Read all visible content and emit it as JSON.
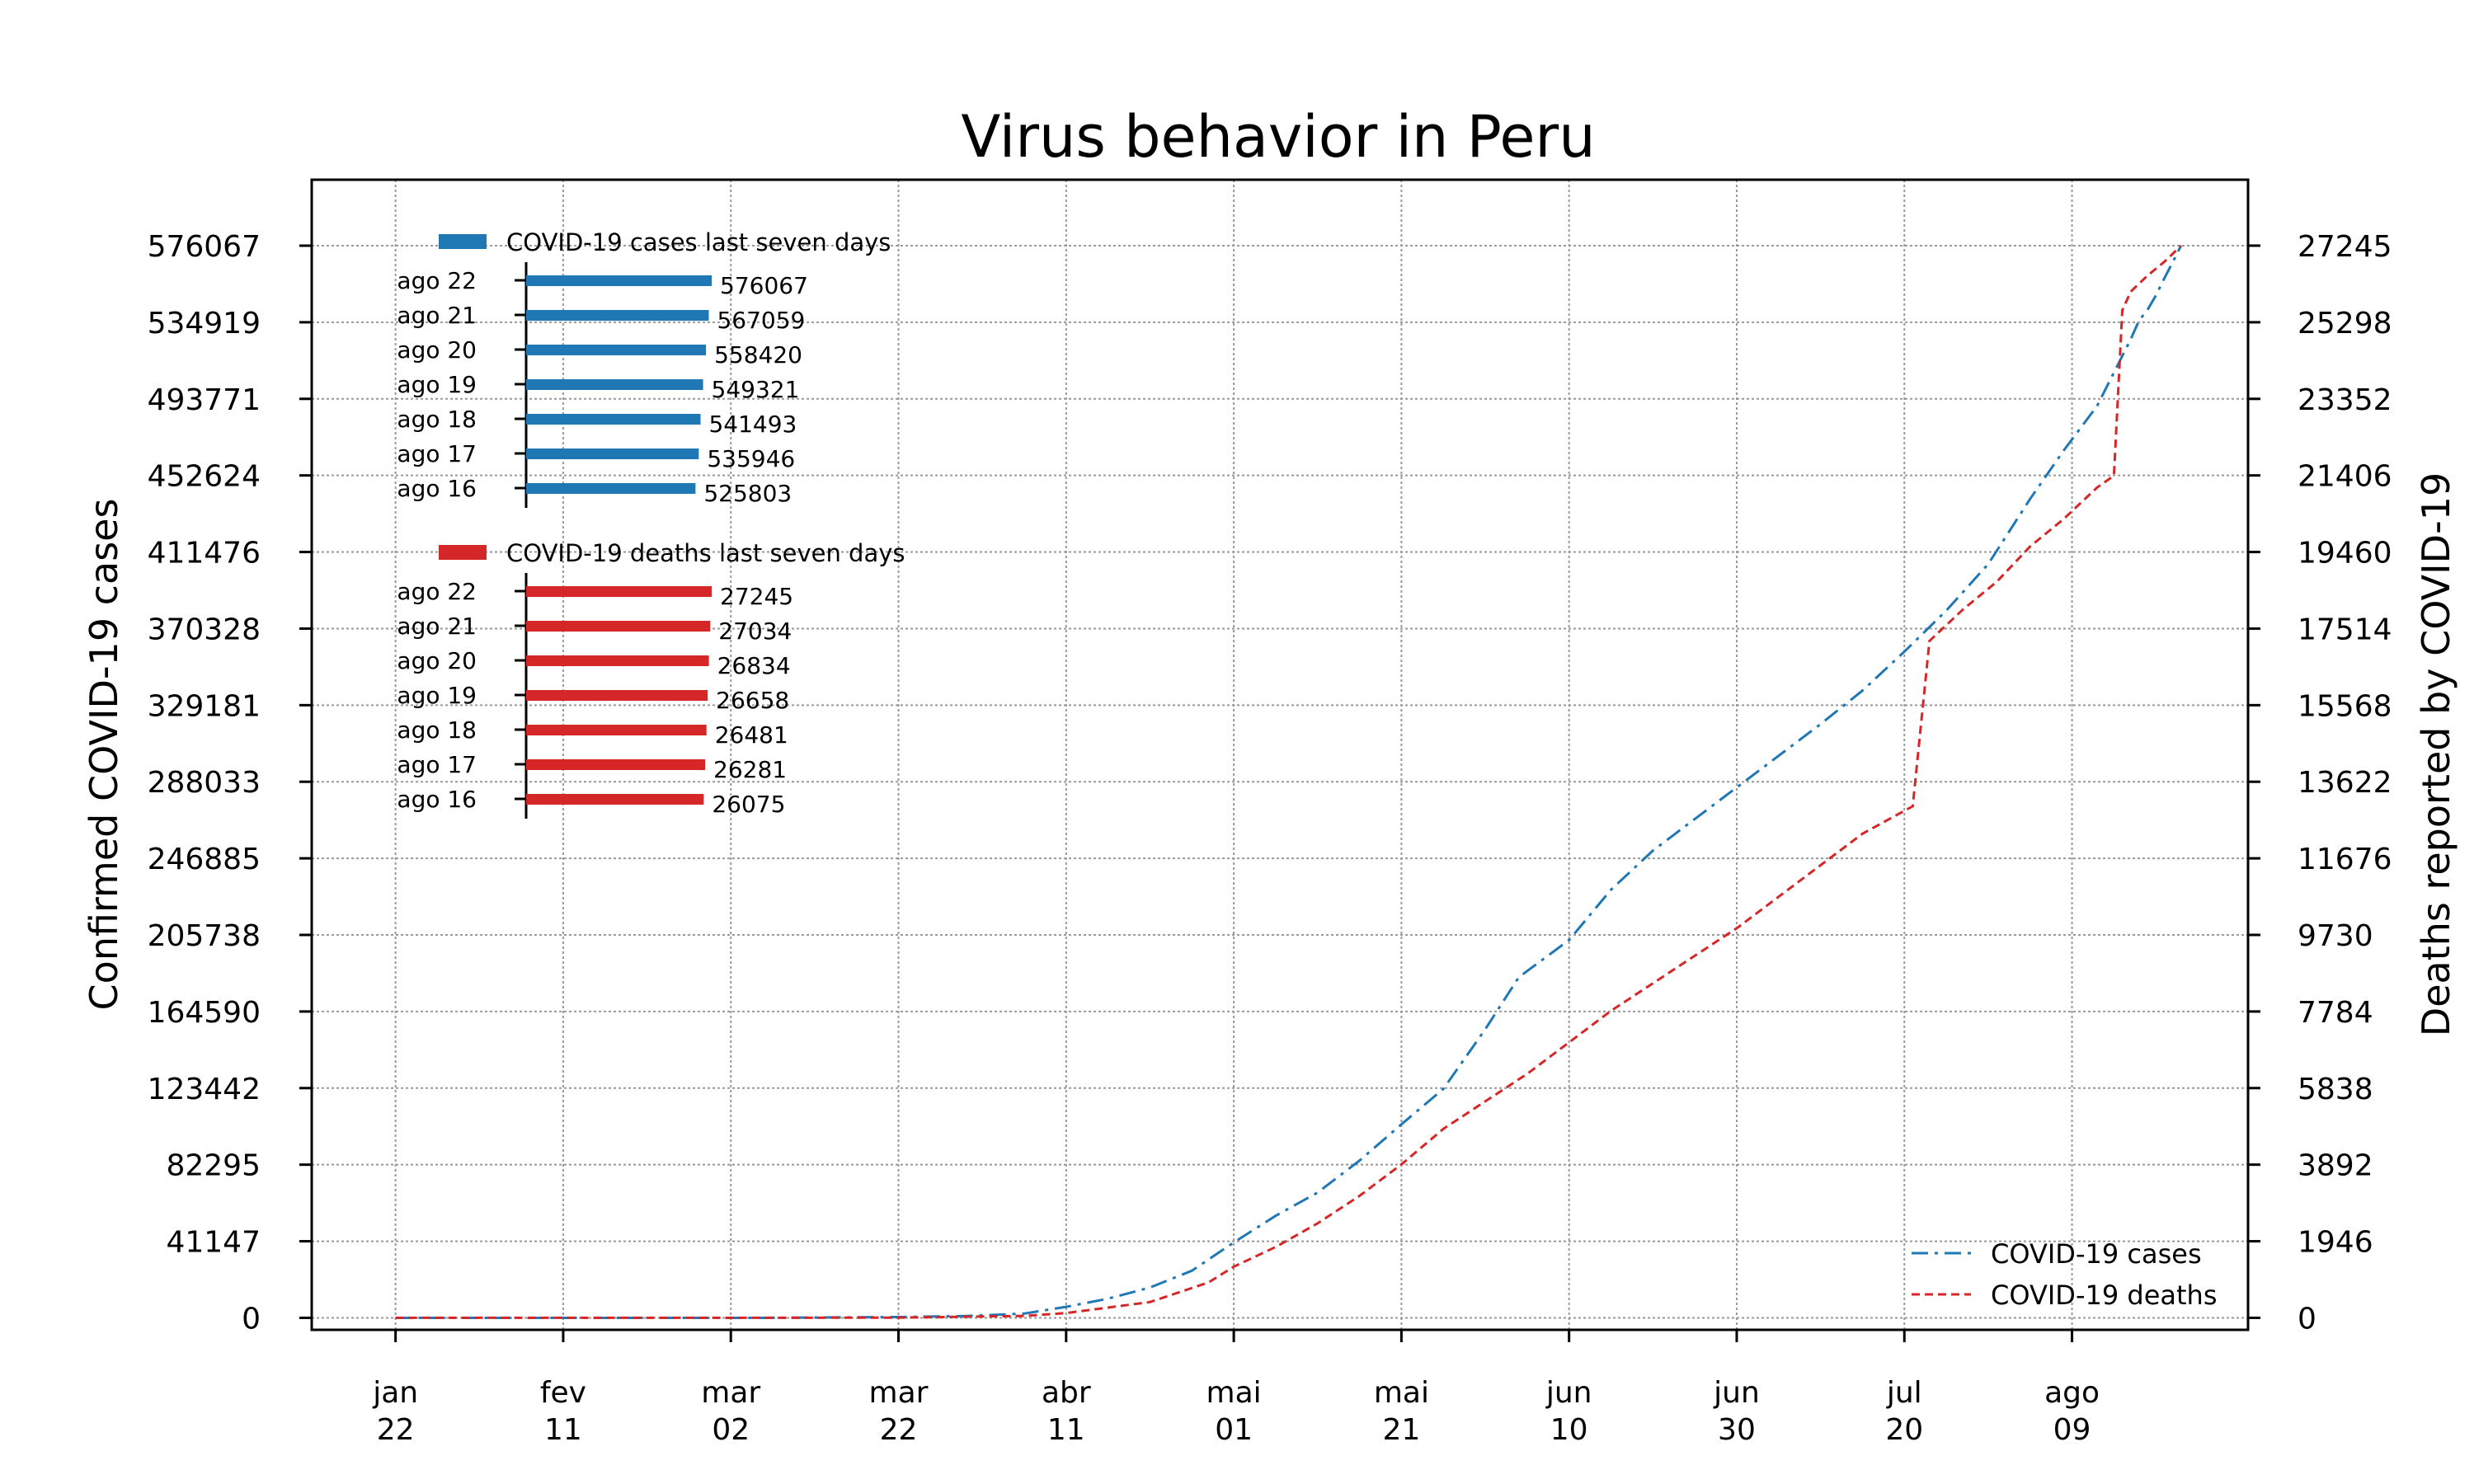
{
  "chart_data": {
    "type": "line",
    "title": "Virus behavior in Peru",
    "ylabel_left": "Confirmed COVID-19 cases",
    "ylabel_right": "Deaths reported by COVID-19",
    "x_ticks": [
      {
        "date": "2020-01-22",
        "label": [
          "jan",
          "22"
        ]
      },
      {
        "date": "2020-02-11",
        "label": [
          "fev",
          "11"
        ]
      },
      {
        "date": "2020-03-02",
        "label": [
          "mar",
          "02"
        ]
      },
      {
        "date": "2020-03-22",
        "label": [
          "mar",
          "22"
        ]
      },
      {
        "date": "2020-04-11",
        "label": [
          "abr",
          "11"
        ]
      },
      {
        "date": "2020-05-01",
        "label": [
          "mai",
          "01"
        ]
      },
      {
        "date": "2020-05-21",
        "label": [
          "mai",
          "21"
        ]
      },
      {
        "date": "2020-06-10",
        "label": [
          "jun",
          "10"
        ]
      },
      {
        "date": "2020-06-30",
        "label": [
          "jun",
          "30"
        ]
      },
      {
        "date": "2020-07-20",
        "label": [
          "jul",
          "20"
        ]
      },
      {
        "date": "2020-08-09",
        "label": [
          "ago",
          "09"
        ]
      }
    ],
    "xlim": [
      "2020-01-12",
      "2020-08-30"
    ],
    "ylim_left": [
      -6444,
      611500
    ],
    "ylim_right": [
      -305,
      28920
    ],
    "yticks_left": [
      0,
      41147,
      82295,
      123442,
      164590,
      205738,
      246885,
      288033,
      329181,
      370328,
      411476,
      452624,
      493771,
      534919,
      576067
    ],
    "yticks_right": [
      0,
      1946,
      3892,
      5838,
      7784,
      9730,
      11676,
      13622,
      15568,
      17514,
      19460,
      21406,
      23352,
      25298,
      27245
    ],
    "grid": true,
    "legend_position": "lower-right",
    "series": [
      {
        "name": "COVID-19 cases",
        "axis": "left",
        "color": "#1f77b4",
        "style": "dashdot",
        "points": [
          [
            "2020-01-22",
            0
          ],
          [
            "2020-03-05",
            0
          ],
          [
            "2020-03-22",
            400
          ],
          [
            "2020-03-30",
            950
          ],
          [
            "2020-04-06",
            2300
          ],
          [
            "2020-04-11",
            5900
          ],
          [
            "2020-04-16",
            10300
          ],
          [
            "2020-04-21",
            16300
          ],
          [
            "2020-04-26",
            25300
          ],
          [
            "2020-05-01",
            40500
          ],
          [
            "2020-05-06",
            54800
          ],
          [
            "2020-05-11",
            67300
          ],
          [
            "2020-05-16",
            84500
          ],
          [
            "2020-05-21",
            104000
          ],
          [
            "2020-05-26",
            123000
          ],
          [
            "2020-05-31",
            155000
          ],
          [
            "2020-06-04",
            183000
          ],
          [
            "2020-06-10",
            203000
          ],
          [
            "2020-06-15",
            230000
          ],
          [
            "2020-06-20",
            251000
          ],
          [
            "2020-06-25",
            268000
          ],
          [
            "2020-06-30",
            285000
          ],
          [
            "2020-07-05",
            302000
          ],
          [
            "2020-07-10",
            319000
          ],
          [
            "2020-07-15",
            337000
          ],
          [
            "2020-07-20",
            358000
          ],
          [
            "2020-07-25",
            380000
          ],
          [
            "2020-07-30",
            405000
          ],
          [
            "2020-08-04",
            440000
          ],
          [
            "2020-08-08",
            466000
          ],
          [
            "2020-08-12",
            490000
          ],
          [
            "2020-08-16",
            525803
          ],
          [
            "2020-08-17",
            535946
          ],
          [
            "2020-08-18",
            541493
          ],
          [
            "2020-08-19",
            549321
          ],
          [
            "2020-08-20",
            558420
          ],
          [
            "2020-08-21",
            567059
          ],
          [
            "2020-08-22",
            576067
          ]
        ]
      },
      {
        "name": "COVID-19 deaths",
        "axis": "right",
        "color": "#d62728",
        "style": "dashed",
        "points": [
          [
            "2020-01-22",
            0
          ],
          [
            "2020-03-05",
            0
          ],
          [
            "2020-03-22",
            5
          ],
          [
            "2020-04-06",
            50
          ],
          [
            "2020-04-11",
            120
          ],
          [
            "2020-04-21",
            400
          ],
          [
            "2020-04-28",
            900
          ],
          [
            "2020-05-01",
            1300
          ],
          [
            "2020-05-06",
            1800
          ],
          [
            "2020-05-11",
            2400
          ],
          [
            "2020-05-16",
            3100
          ],
          [
            "2020-05-21",
            3900
          ],
          [
            "2020-05-26",
            4800
          ],
          [
            "2020-05-31",
            5500
          ],
          [
            "2020-06-05",
            6200
          ],
          [
            "2020-06-10",
            7000
          ],
          [
            "2020-06-15",
            7800
          ],
          [
            "2020-06-20",
            8500
          ],
          [
            "2020-06-25",
            9200
          ],
          [
            "2020-06-30",
            9900
          ],
          [
            "2020-07-05",
            10700
          ],
          [
            "2020-07-10",
            11500
          ],
          [
            "2020-07-15",
            12300
          ],
          [
            "2020-07-21",
            13000
          ],
          [
            "2020-07-23",
            17200
          ],
          [
            "2020-07-27",
            18000
          ],
          [
            "2020-07-31",
            18700
          ],
          [
            "2020-08-04",
            19600
          ],
          [
            "2020-08-08",
            20300
          ],
          [
            "2020-08-12",
            21100
          ],
          [
            "2020-08-14",
            21400
          ],
          [
            "2020-08-15",
            25600
          ],
          [
            "2020-08-16",
            26075
          ],
          [
            "2020-08-17",
            26281
          ],
          [
            "2020-08-18",
            26481
          ],
          [
            "2020-08-19",
            26658
          ],
          [
            "2020-08-20",
            26834
          ],
          [
            "2020-08-21",
            27034
          ],
          [
            "2020-08-22",
            27245
          ]
        ]
      }
    ],
    "insets": [
      {
        "title": "COVID-19 cases last seven days",
        "color": "#1f77b4",
        "rows": [
          {
            "label": "ago 22",
            "value": 576067
          },
          {
            "label": "ago 21",
            "value": 567059
          },
          {
            "label": "ago 20",
            "value": 558420
          },
          {
            "label": "ago 19",
            "value": 549321
          },
          {
            "label": "ago 18",
            "value": 541493
          },
          {
            "label": "ago 17",
            "value": 535946
          },
          {
            "label": "ago 16",
            "value": 525803
          }
        ]
      },
      {
        "title": "COVID-19 deaths last seven days",
        "color": "#d62728",
        "rows": [
          {
            "label": "ago 22",
            "value": 27245
          },
          {
            "label": "ago 21",
            "value": 27034
          },
          {
            "label": "ago 20",
            "value": 26834
          },
          {
            "label": "ago 19",
            "value": 26658
          },
          {
            "label": "ago 18",
            "value": 26481
          },
          {
            "label": "ago 17",
            "value": 26281
          },
          {
            "label": "ago 16",
            "value": 26075
          }
        ]
      }
    ]
  }
}
